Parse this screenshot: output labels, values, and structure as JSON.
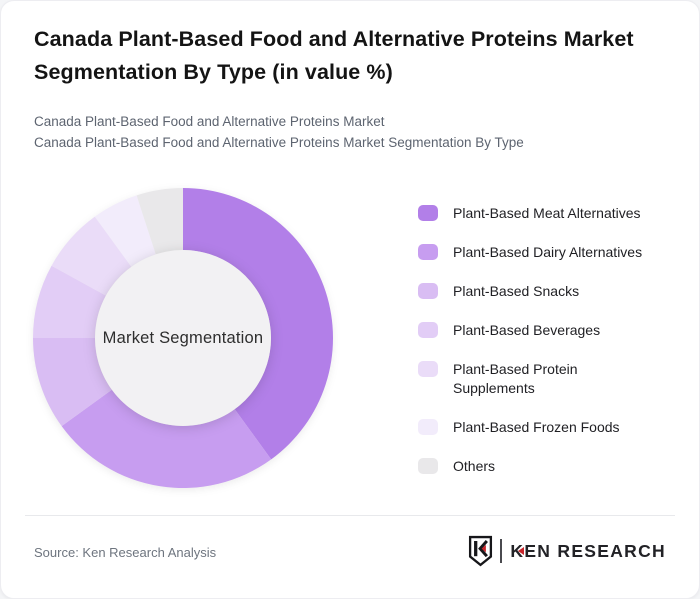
{
  "card": {
    "title": "Canada Plant-Based Food and Alternative Proteins Market Segmentation By Type (in value %)",
    "subtitle_line1": "Canada Plant-Based Food and Alternative Proteins Market",
    "subtitle_line2": "Canada Plant-Based Food and Alternative Proteins Market Segmentation By Type"
  },
  "chart_data": {
    "type": "pie",
    "variant": "donut",
    "title": "Canada Plant-Based Food and Alternative Proteins Market Segmentation By Type (in value %)",
    "unit": "value %",
    "center_label": "Market Segmentation",
    "start_angle_deg": 0,
    "direction": "clockwise",
    "legend_position": "right",
    "hole_color": "#f2f1f3",
    "segments": [
      {
        "label": "Plant-Based Meat Alternatives",
        "value": 40,
        "color": "#b27fe8"
      },
      {
        "label": "Plant-Based Dairy Alternatives",
        "value": 25,
        "color": "#c79df0"
      },
      {
        "label": "Plant-Based Snacks",
        "value": 10,
        "color": "#d9bdf3"
      },
      {
        "label": "Plant-Based Beverages",
        "value": 8,
        "color": "#e2cdf6"
      },
      {
        "label": "Plant-Based Protein Supplements",
        "value": 7,
        "color": "#eadcf8"
      },
      {
        "label": "Plant-Based Frozen Foods",
        "value": 5,
        "color": "#f2ecfb"
      },
      {
        "label": "Others",
        "value": 5,
        "color": "#e9e8ea"
      }
    ]
  },
  "footer": {
    "source": "Source: Ken Research Analysis",
    "logo_text": "EN RESEARCH",
    "logo_k": "K"
  }
}
